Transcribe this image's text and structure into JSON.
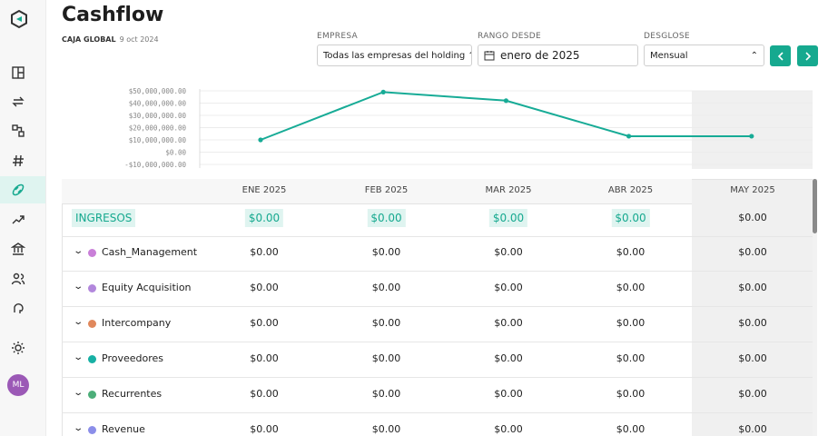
{
  "header": {
    "title": "Cashflow",
    "subtitle": "CAJA GLOBAL",
    "date": "9 oct 2024"
  },
  "filters": [
    {
      "label": "EMPRESA",
      "value": "Todas las empresas del holding"
    },
    {
      "label": "RANGO DESDE",
      "value": "enero de 2025"
    },
    {
      "label": "DESGLOSE",
      "value": "Mensual"
    }
  ],
  "user": {
    "initials": "ML"
  },
  "chart_data": {
    "type": "line",
    "categories": [
      null,
      null,
      null,
      null,
      null
    ],
    "values": [
      10000000,
      49000000,
      42000000,
      13000000,
      13000000
    ],
    "color": "#17ab96",
    "ylim": [
      -10000000,
      50000000
    ],
    "yticks": [
      {
        "value": 50000000,
        "label": "$50,000,000.00"
      },
      {
        "value": 40000000,
        "label": "$40,000,000.00"
      },
      {
        "value": 30000000,
        "label": "$30,000,000.00"
      },
      {
        "value": 20000000,
        "label": "$20,000,000.00"
      },
      {
        "value": 10000000,
        "label": "$10,000,000.00"
      },
      {
        "value": 0,
        "label": "$0.00"
      },
      {
        "value": -10000000,
        "label": "-$10,000,000.00"
      }
    ],
    "grid": true
  },
  "table": {
    "columns": [
      "ENE 2025",
      "FEB 2025",
      "MAR 2025",
      "ABR 2025",
      "MAY 2025"
    ],
    "section": {
      "label": "INGRESOS",
      "values": [
        "$0.00",
        "$0.00",
        "$0.00",
        "$0.00",
        "$0.00"
      ]
    },
    "rows": [
      {
        "name": "Cash_Management",
        "color": "#c97fd8",
        "values": [
          "$0.00",
          "$0.00",
          "$0.00",
          "$0.00",
          "$0.00"
        ]
      },
      {
        "name": "Equity Acquisition",
        "color": "#b287dc",
        "values": [
          "$0.00",
          "$0.00",
          "$0.00",
          "$0.00",
          "$0.00"
        ]
      },
      {
        "name": "Intercompany",
        "color": "#e0885c",
        "values": [
          "$0.00",
          "$0.00",
          "$0.00",
          "$0.00",
          "$0.00"
        ]
      },
      {
        "name": "Proveedores",
        "color": "#17b0a4",
        "values": [
          "$0.00",
          "$0.00",
          "$0.00",
          "$0.00",
          "$0.00"
        ]
      },
      {
        "name": "Recurrentes",
        "color": "#4cae79",
        "values": [
          "$0.00",
          "$0.00",
          "$0.00",
          "$0.00",
          "$0.00"
        ]
      },
      {
        "name": "Revenue",
        "color": "#8b8ee9",
        "values": [
          "$0.00",
          "$0.00",
          "$0.00",
          "$0.00",
          "$0.00"
        ]
      }
    ]
  }
}
